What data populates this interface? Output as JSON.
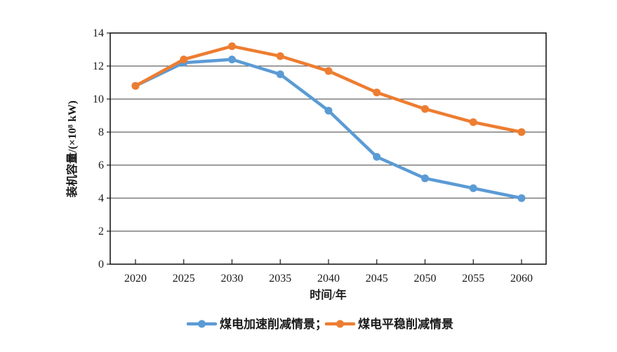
{
  "chart_data": {
    "type": "line",
    "title": "",
    "xlabel": "时间/年",
    "ylabel": "装机容量/(×10⁸ kW)",
    "categories": [
      "2020",
      "2025",
      "2030",
      "2035",
      "2040",
      "2045",
      "2050",
      "2055",
      "2060"
    ],
    "x": [
      2020,
      2025,
      2030,
      2035,
      2040,
      2045,
      2050,
      2055,
      2060
    ],
    "series": [
      {
        "name": "煤电加速削减情景",
        "legend_label": "煤电加速削减情景；",
        "color": "#5B9BD5",
        "marker": "circle",
        "values": [
          10.8,
          12.2,
          12.4,
          11.5,
          9.3,
          6.5,
          5.2,
          4.6,
          4.0
        ]
      },
      {
        "name": "煤电平稳削减情景",
        "legend_label": "煤电平稳削减情景",
        "color": "#ED7D31",
        "marker": "circle",
        "values": [
          10.8,
          12.4,
          13.2,
          12.6,
          11.7,
          10.4,
          9.4,
          8.6,
          8.0
        ]
      }
    ],
    "ylim": [
      0,
      14
    ],
    "yticks": [
      0,
      2,
      4,
      6,
      8,
      10,
      12,
      14
    ],
    "grid": "horizontal",
    "legend_position": "bottom"
  },
  "style": {
    "background_color": "#ffffff",
    "axis_color": "#1a1a1a",
    "grid_color": "#3d3d3d",
    "text_color": "#1a1a1a"
  }
}
